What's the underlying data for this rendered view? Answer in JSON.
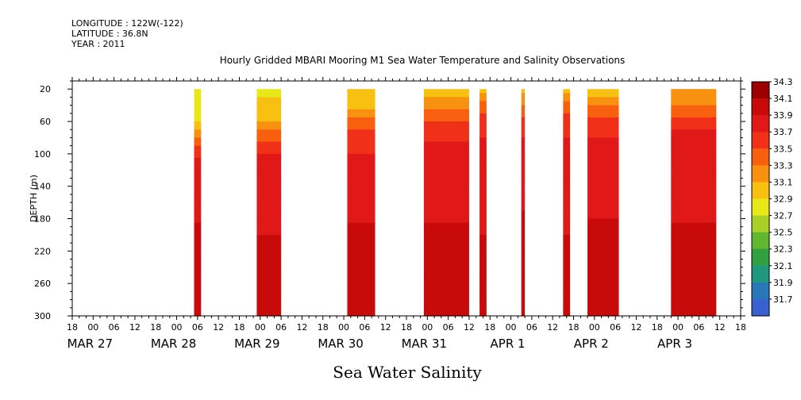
{
  "header": {
    "longitude": "LONGITUDE : 122W(-122)",
    "latitude": "LATITUDE : 36.8N",
    "year": "YEAR : 2011"
  },
  "chart_data": {
    "type": "heatmap",
    "title": "Hourly Gridded MBARI Mooring M1 Sea Water Temperature and Salinity Observations",
    "xlabel": "Sea Water Salinity",
    "ylabel": "DEPTH (m)",
    "ylim": [
      300,
      10
    ],
    "y_ticks": [
      20,
      60,
      100,
      140,
      180,
      220,
      260,
      300
    ],
    "x_hour_ticks": [
      "18",
      "00",
      "06",
      "12",
      "18",
      "00",
      "06",
      "12",
      "18",
      "00",
      "06",
      "12",
      "18",
      "00",
      "06",
      "12",
      "18",
      "00",
      "06",
      "12",
      "18",
      "00",
      "06",
      "12",
      "18",
      "00",
      "06",
      "12",
      "18",
      "00",
      "06",
      "12",
      "18"
    ],
    "x_date_labels": [
      "MAR 27",
      "MAR 28",
      "MAR 29",
      "MAR 30",
      "MAR 31",
      "APR  1",
      "APR  2",
      "APR  3"
    ],
    "x_start": "2011-03-26 18:00",
    "hour_step": 6,
    "colorbar": {
      "levels": [
        31.7,
        31.9,
        32.1,
        32.3,
        32.5,
        32.7,
        32.9,
        33.1,
        33.3,
        33.5,
        33.7,
        33.9,
        34.1,
        34.3
      ],
      "colors": [
        "#d020e8",
        "#8c38f0",
        "#5048e0",
        "#3860d0",
        "#2878b8",
        "#209880",
        "#30a040",
        "#60b830",
        "#a8d028",
        "#e8e818",
        "#f8c010",
        "#f89010",
        "#f86010",
        "#f03018",
        "#e01818",
        "#c80a0a",
        "#9c0000"
      ]
    },
    "segments": [
      {
        "start": "2011-03-28 05:00",
        "end": "2011-03-28 07:00",
        "profile": [
          [
            20,
            33.0
          ],
          [
            55,
            33.05
          ],
          [
            70,
            33.3
          ],
          [
            85,
            33.6
          ],
          [
            100,
            33.85
          ],
          [
            120,
            34.0
          ],
          [
            200,
            34.12
          ],
          [
            235,
            34.2
          ],
          [
            300,
            34.12
          ]
        ]
      },
      {
        "start": "2011-03-28 23:00",
        "end": "2011-03-29 06:00",
        "profile": [
          [
            20,
            33.05
          ],
          [
            60,
            33.3
          ],
          [
            75,
            33.6
          ],
          [
            95,
            33.85
          ],
          [
            110,
            33.95
          ],
          [
            140,
            34.0
          ],
          [
            210,
            34.12
          ],
          [
            235,
            34.22
          ],
          [
            265,
            34.3
          ],
          [
            280,
            34.2
          ],
          [
            300,
            34.12
          ]
        ]
      },
      {
        "start": "2011-03-30 01:00",
        "end": "2011-03-30 09:00",
        "profile": [
          [
            20,
            33.1
          ],
          [
            45,
            33.3
          ],
          [
            60,
            33.55
          ],
          [
            80,
            33.8
          ],
          [
            110,
            33.95
          ],
          [
            150,
            34.05
          ],
          [
            200,
            34.12
          ],
          [
            230,
            34.22
          ],
          [
            265,
            34.3
          ],
          [
            280,
            34.2
          ],
          [
            300,
            34.12
          ]
        ]
      },
      {
        "start": "2011-03-30 23:00",
        "end": "2011-03-31 12:00",
        "profile": [
          [
            20,
            33.15
          ],
          [
            35,
            33.35
          ],
          [
            50,
            33.55
          ],
          [
            65,
            33.75
          ],
          [
            85,
            33.9
          ],
          [
            110,
            34.0
          ],
          [
            200,
            34.12
          ],
          [
            225,
            34.22
          ],
          [
            270,
            34.3
          ],
          [
            285,
            34.2
          ],
          [
            300,
            34.12
          ]
        ]
      },
      {
        "start": "2011-03-31 15:00",
        "end": "2011-03-31 17:00",
        "profile": [
          [
            20,
            33.2
          ],
          [
            35,
            33.5
          ],
          [
            55,
            33.75
          ],
          [
            80,
            33.9
          ],
          [
            110,
            34.0
          ],
          [
            220,
            34.12
          ],
          [
            240,
            34.22
          ],
          [
            280,
            34.3
          ],
          [
            300,
            34.15
          ]
        ]
      },
      {
        "start": "2011-04-01 03:00",
        "end": "2011-04-01 04:00",
        "profile": [
          [
            20,
            33.2
          ],
          [
            40,
            33.5
          ],
          [
            60,
            33.8
          ],
          [
            90,
            33.95
          ],
          [
            120,
            34.05
          ],
          [
            220,
            34.15
          ],
          [
            240,
            34.25
          ],
          [
            300,
            34.3
          ]
        ]
      },
      {
        "start": "2011-04-01 15:00",
        "end": "2011-04-01 17:00",
        "profile": [
          [
            20,
            33.15
          ],
          [
            35,
            33.5
          ],
          [
            55,
            33.75
          ],
          [
            80,
            33.9
          ],
          [
            110,
            34.0
          ],
          [
            220,
            34.12
          ],
          [
            240,
            34.22
          ],
          [
            280,
            34.3
          ],
          [
            300,
            34.15
          ]
        ]
      },
      {
        "start": "2011-04-01 22:00",
        "end": "2011-04-02 07:00",
        "profile": [
          [
            20,
            33.05
          ],
          [
            30,
            33.3
          ],
          [
            45,
            33.6
          ],
          [
            65,
            33.8
          ],
          [
            85,
            33.92
          ],
          [
            110,
            34.02
          ],
          [
            200,
            34.12
          ],
          [
            225,
            34.22
          ],
          [
            270,
            34.3
          ],
          [
            280,
            34.2
          ],
          [
            300,
            34.12
          ]
        ]
      },
      {
        "start": "2011-04-02 22:00",
        "end": "2011-04-03 11:00",
        "profile": [
          [
            20,
            33.3
          ],
          [
            35,
            33.45
          ],
          [
            50,
            33.65
          ],
          [
            65,
            33.85
          ],
          [
            80,
            33.95
          ],
          [
            140,
            34.05
          ],
          [
            200,
            34.12
          ],
          [
            230,
            34.22
          ],
          [
            270,
            34.3
          ],
          [
            285,
            34.2
          ],
          [
            300,
            34.12
          ]
        ]
      }
    ]
  }
}
